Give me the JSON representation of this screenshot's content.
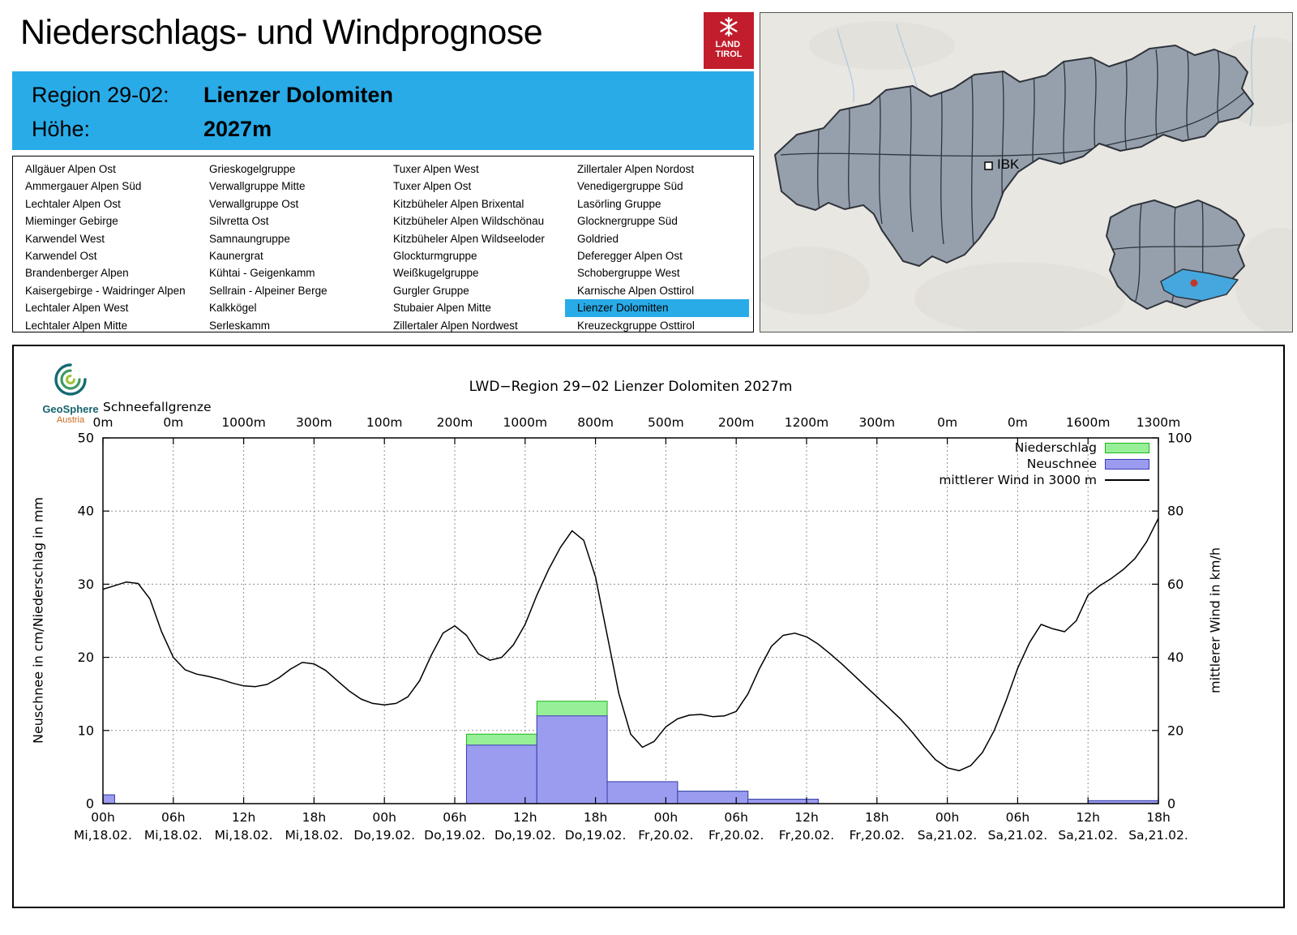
{
  "header": {
    "title": "Niederschlags- und Windprognose",
    "logo": {
      "line1": "LAND",
      "line2": "TIROL",
      "color": "#c21d2c"
    },
    "region_label": "Region 29-02:",
    "region_value": "Lienzer Dolomiten",
    "altitude_label": "Höhe:",
    "altitude_value": "2027m",
    "accent_color": "#29abe8"
  },
  "map": {
    "city_label": "IBK",
    "region_fill": "#96a0ac",
    "selected_fill": "#45a7dd",
    "marker_color": "#c0392b"
  },
  "region_list": {
    "highlighted": "Lienzer Dolomitten",
    "columns": [
      [
        "Allgäuer Alpen Ost",
        "Ammergauer Alpen Süd",
        "Lechtaler Alpen Ost",
        "Mieminger Gebirge",
        "Karwendel West",
        "Karwendel Ost",
        "Brandenberger Alpen",
        "Kaisergebirge - Waidringer Alpen",
        "Lechtaler Alpen West",
        "Lechtaler Alpen Mitte"
      ],
      [
        "Grieskogelgruppe",
        "Verwallgruppe Mitte",
        "Verwallgruppe Ost",
        "Silvretta Ost",
        "Samnaungruppe",
        "Kaunergrat",
        "Kühtai - Geigenkamm",
        "Sellrain - Alpeiner Berge",
        "Kalkkögel",
        "Serleskamm"
      ],
      [
        "Tuxer Alpen West",
        "Tuxer Alpen Ost",
        "Kitzbüheler Alpen Brixental",
        "Kitzbüheler Alpen Wildschönau",
        "Kitzbüheler Alpen Wildseeloder",
        "Glockturmgruppe",
        "Weißkugelgruppe",
        "Gurgler Gruppe",
        "Stubaier Alpen Mitte",
        "Zillertaler Alpen Nordwest"
      ],
      [
        "Zillertaler Alpen Nordost",
        "Venedigergruppe Süd",
        "Lasörling Gruppe",
        "Glocknergruppe Süd",
        "Goldried",
        "Deferegger Alpen Ost",
        "Schobergruppe West",
        "Karnische Alpen Osttirol",
        "Lienzer Dolomitten",
        "Kreuzeckgruppe Osttirol"
      ]
    ]
  },
  "chart": {
    "logo": {
      "line1": "GeoSphere",
      "line2": "Austria"
    },
    "title": "LWD−Region 29−02 Lienzer Dolomiten 2027m",
    "snowline_label": "Schneefallgrenze",
    "legend": [
      {
        "label": "Niederschlag",
        "type": "box",
        "fill": "#97f097",
        "stroke": "#1fb41f"
      },
      {
        "label": "Neuschnee",
        "type": "box",
        "fill": "#9b9bf0",
        "stroke": "#3c3cb4"
      },
      {
        "label": "mittlerer Wind in 3000 m",
        "type": "line",
        "stroke": "#000000"
      }
    ]
  },
  "chart_data": {
    "type": "bar+line combo",
    "title": "LWD−Region 29−02 Lienzer Dolomiten 2027m",
    "x_range": [
      0,
      90
    ],
    "x_unit": "hours since Mi 18.02. 00h",
    "x_ticks": [
      0,
      6,
      12,
      18,
      24,
      30,
      36,
      42,
      48,
      54,
      60,
      66,
      72,
      78,
      84,
      90
    ],
    "x_tick_labels": [
      [
        "00h",
        "Mi,18.02."
      ],
      [
        "06h",
        "Mi,18.02."
      ],
      [
        "12h",
        "Mi,18.02."
      ],
      [
        "18h",
        "Mi,18.02."
      ],
      [
        "00h",
        "Do,19.02."
      ],
      [
        "06h",
        "Do,19.02."
      ],
      [
        "12h",
        "Do,19.02."
      ],
      [
        "18h",
        "Do,19.02."
      ],
      [
        "00h",
        "Fr,20.02."
      ],
      [
        "06h",
        "Fr,20.02."
      ],
      [
        "12h",
        "Fr,20.02."
      ],
      [
        "18h",
        "Fr,20.02."
      ],
      [
        "00h",
        "Sa,21.02."
      ],
      [
        "06h",
        "Sa,21.02."
      ],
      [
        "12h",
        "Sa,21.02."
      ],
      [
        "18h",
        "Sa,21.02."
      ]
    ],
    "snowline_labels": [
      "0m",
      "0m",
      "1000m",
      "300m",
      "100m",
      "200m",
      "1000m",
      "800m",
      "500m",
      "200m",
      "1200m",
      "300m",
      "0m",
      "0m",
      "1600m",
      "1300m"
    ],
    "y_left": {
      "label": "Neuschnee in cm/Niederschlag in mm",
      "min": 0,
      "max": 50,
      "ticks": [
        0,
        10,
        20,
        30,
        40,
        50
      ]
    },
    "y_right": {
      "label": "mittlerer Wind in km/h",
      "min": 0,
      "max": 100,
      "ticks": [
        0,
        20,
        40,
        60,
        80,
        100
      ]
    },
    "bars": [
      {
        "start_hour": 0,
        "end_hour": 1,
        "niederschlag_mm": 1.2,
        "neuschnee_cm": 1.2
      },
      {
        "start_hour": 31,
        "end_hour": 37,
        "niederschlag_mm": 9.5,
        "neuschnee_cm": 8
      },
      {
        "start_hour": 37,
        "end_hour": 43,
        "niederschlag_mm": 14,
        "neuschnee_cm": 12
      },
      {
        "start_hour": 43,
        "end_hour": 49,
        "niederschlag_mm": 3,
        "neuschnee_cm": 3
      },
      {
        "start_hour": 49,
        "end_hour": 55,
        "niederschlag_mm": 1.7,
        "neuschnee_cm": 1.7
      },
      {
        "start_hour": 55,
        "end_hour": 61,
        "niederschlag_mm": 0.6,
        "neuschnee_cm": 0.6
      },
      {
        "start_hour": 84,
        "end_hour": 90,
        "niederschlag_mm": 0.4,
        "neuschnee_cm": 0.4
      }
    ],
    "wind_series": {
      "name": "mittlerer Wind in 3000 m",
      "unit": "km/h",
      "start_hour": 0,
      "step_hours": 1,
      "values": [
        58.6,
        59.6,
        60.6,
        60.2,
        56,
        47,
        40,
        36.6,
        35.4,
        34.8,
        34,
        33,
        32.2,
        32,
        32.6,
        34.4,
        36.8,
        38.6,
        38.2,
        36.4,
        33.6,
        30.8,
        28.6,
        27.4,
        27,
        27.4,
        29.2,
        33.6,
        40.6,
        46.6,
        48.6,
        46,
        41,
        39.2,
        40,
        43.4,
        49,
        57,
        64,
        70,
        74.6,
        72,
        62,
        46,
        30,
        19,
        15.4,
        17,
        21,
        23.2,
        24.2,
        24.4,
        23.8,
        24,
        25.2,
        30,
        37,
        43,
        46,
        46.6,
        45.6,
        43.6,
        41,
        38.2,
        35.2,
        32.2,
        29.2,
        26.2,
        23.2,
        19.6,
        15.6,
        12,
        9.8,
        9,
        10.4,
        14,
        20,
        28,
        37,
        44,
        49,
        47.8,
        47,
        50,
        57,
        59.6,
        61.6,
        64,
        67,
        71.6,
        78
      ]
    }
  }
}
